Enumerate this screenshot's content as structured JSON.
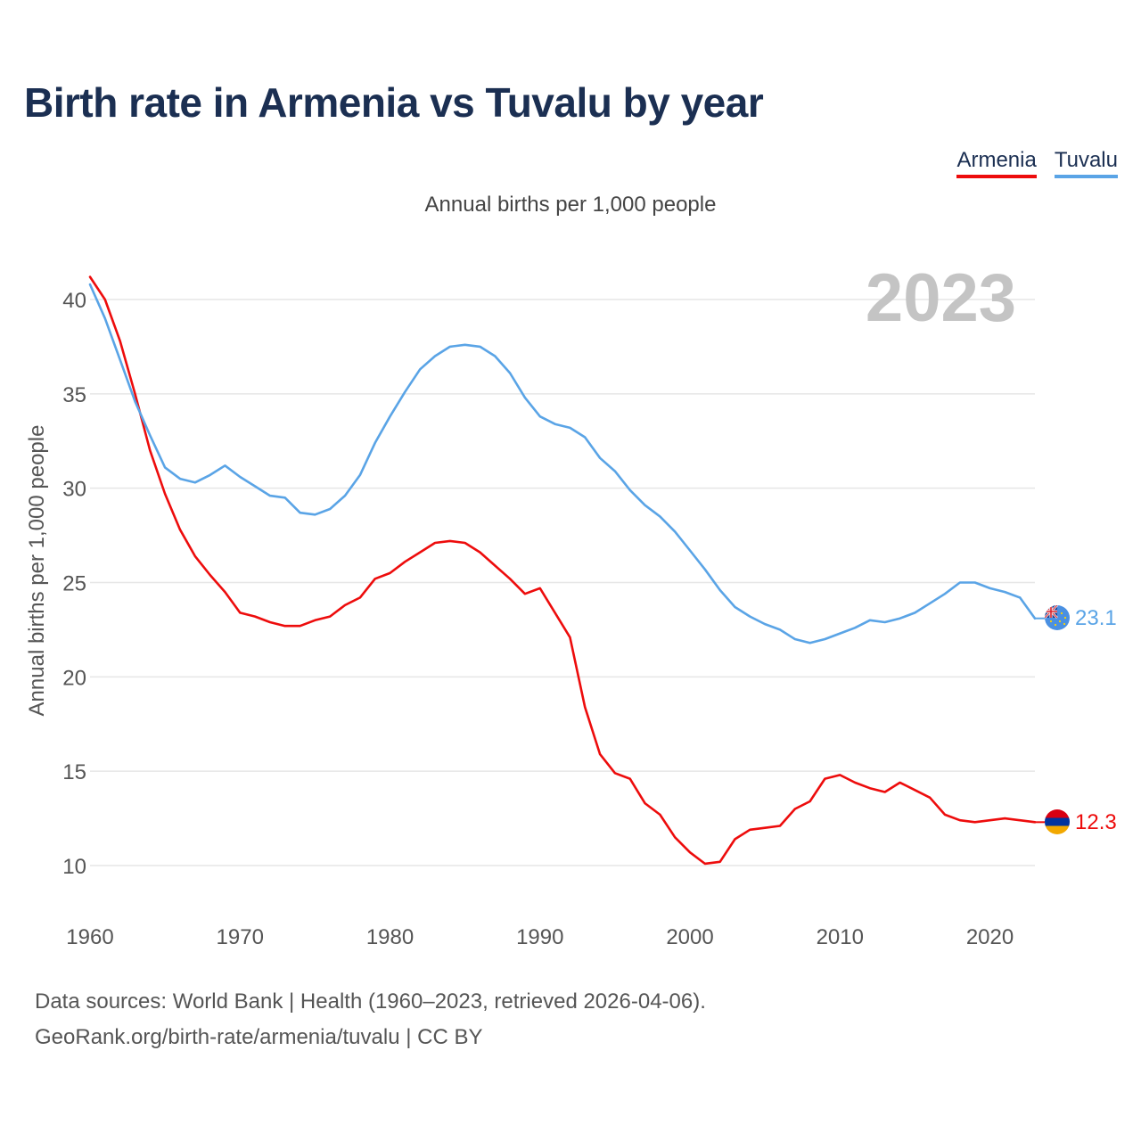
{
  "title": "Birth rate in Armenia vs Tuvalu by year",
  "legend": {
    "armenia": "Armenia",
    "tuvalu": "Tuvalu"
  },
  "subtitle": "Annual births per 1,000 people",
  "footer": {
    "line1": "Data sources: World Bank | Health (1960–2023, retrieved 2026-04-06).",
    "line2": "GeoRank.org/birth-rate/armenia/tuvalu | CC BY"
  },
  "colors": {
    "armenia": "#ed0c0c",
    "tuvalu": "#5aa4e6",
    "grid": "#e6e6e6",
    "year": "#c4c4c4"
  },
  "chart_data": {
    "type": "line",
    "title": "Birth rate in Armenia vs Tuvalu by year",
    "ylabel": "Annual births per 1,000 people",
    "xlabel": "",
    "year_label": "2023",
    "xlim": [
      1960,
      2023
    ],
    "ylim": [
      10,
      40
    ],
    "xticks": [
      1960,
      1970,
      1980,
      1990,
      2000,
      2010,
      2020
    ],
    "yticks": [
      10,
      15,
      20,
      25,
      30,
      35,
      40
    ],
    "x": [
      1960,
      1961,
      1962,
      1963,
      1964,
      1965,
      1966,
      1967,
      1968,
      1969,
      1970,
      1971,
      1972,
      1973,
      1974,
      1975,
      1976,
      1977,
      1978,
      1979,
      1980,
      1981,
      1982,
      1983,
      1984,
      1985,
      1986,
      1987,
      1988,
      1989,
      1990,
      1991,
      1992,
      1993,
      1994,
      1995,
      1996,
      1997,
      1998,
      1999,
      2000,
      2001,
      2002,
      2003,
      2004,
      2005,
      2006,
      2007,
      2008,
      2009,
      2010,
      2011,
      2012,
      2013,
      2014,
      2015,
      2016,
      2017,
      2018,
      2019,
      2020,
      2021,
      2022,
      2023
    ],
    "series": [
      {
        "name": "Armenia",
        "color": "#ed0c0c",
        "end_label": "12.3",
        "values": [
          41.2,
          40.0,
          37.8,
          35.0,
          32.0,
          29.7,
          27.8,
          26.4,
          25.4,
          24.5,
          23.4,
          23.2,
          22.9,
          22.7,
          22.7,
          23.0,
          23.2,
          23.8,
          24.2,
          25.2,
          25.5,
          26.1,
          26.6,
          27.1,
          27.2,
          27.1,
          26.6,
          25.9,
          25.2,
          24.4,
          24.7,
          23.4,
          22.1,
          18.4,
          15.9,
          14.9,
          14.6,
          13.3,
          12.7,
          11.5,
          10.7,
          10.1,
          10.2,
          11.4,
          11.9,
          12.0,
          12.1,
          13.0,
          13.4,
          14.6,
          14.8,
          14.4,
          14.1,
          13.9,
          14.4,
          14.0,
          13.6,
          12.7,
          12.4,
          12.3,
          12.4,
          12.5,
          12.4,
          12.3
        ]
      },
      {
        "name": "Tuvalu",
        "color": "#5aa4e6",
        "end_label": "23.1",
        "values": [
          40.8,
          39.0,
          36.8,
          34.6,
          32.8,
          31.1,
          30.5,
          30.3,
          30.7,
          31.2,
          30.6,
          30.1,
          29.6,
          29.5,
          28.7,
          28.6,
          28.9,
          29.6,
          30.7,
          32.4,
          33.8,
          35.1,
          36.3,
          37.0,
          37.5,
          37.6,
          37.5,
          37.0,
          36.1,
          34.8,
          33.8,
          33.4,
          33.2,
          32.7,
          31.6,
          30.9,
          29.9,
          29.1,
          28.5,
          27.7,
          26.7,
          25.7,
          24.6,
          23.7,
          23.2,
          22.8,
          22.5,
          22.0,
          21.8,
          22.0,
          22.3,
          22.6,
          23.0,
          22.9,
          23.1,
          23.4,
          23.9,
          24.4,
          25.0,
          25.0,
          24.7,
          24.5,
          24.2,
          23.1
        ]
      }
    ]
  }
}
